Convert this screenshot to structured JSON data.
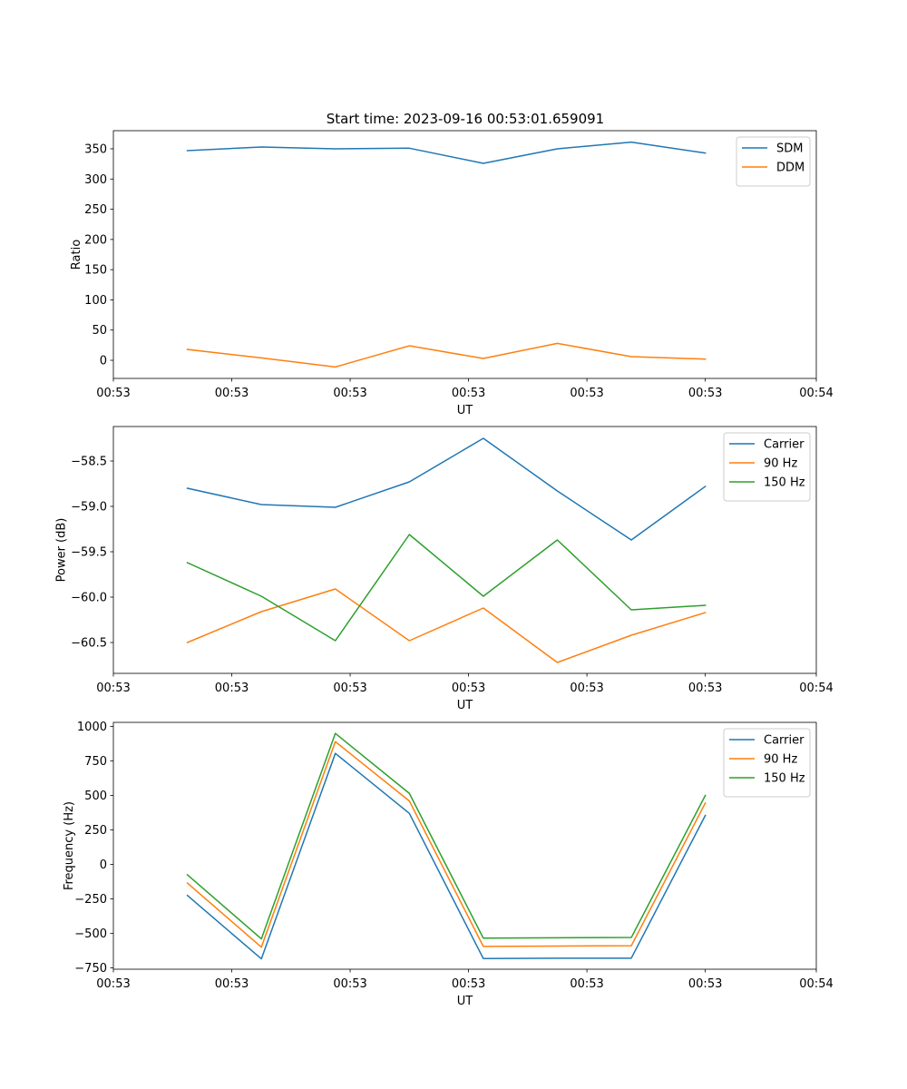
{
  "figure": {
    "title": "Start time: 2023-09-16 00:53:01.659091"
  },
  "colors": {
    "blue": "#1f77b4",
    "orange": "#ff7f0e",
    "green": "#2ca02c"
  },
  "chart_data": [
    {
      "type": "line",
      "title": "Start time: 2023-09-16 00:53:01.659091",
      "xlabel": "UT",
      "ylabel": "Ratio",
      "x": [
        0.5,
        1,
        1.5,
        2,
        2.5,
        3,
        3.5,
        4
      ],
      "xlim": [
        0,
        4.75
      ],
      "xticks": [
        0,
        0.8,
        1.6,
        2.4,
        3.2,
        4.0,
        4.75
      ],
      "xticklabels": [
        "00:53",
        "00:53",
        "00:53",
        "00:53",
        "00:53",
        "00:53",
        "00:54"
      ],
      "ylim": [
        -30,
        380
      ],
      "yticks": [
        0,
        50,
        100,
        150,
        200,
        250,
        300,
        350
      ],
      "legend": "top-right",
      "series": [
        {
          "name": "SDM",
          "color": "#1f77b4",
          "values": [
            347,
            353,
            350,
            351,
            326,
            350,
            361,
            343
          ]
        },
        {
          "name": "DDM",
          "color": "#ff7f0e",
          "values": [
            18,
            4,
            -11,
            24,
            3,
            28,
            6,
            2
          ]
        }
      ]
    },
    {
      "type": "line",
      "title": "",
      "xlabel": "UT",
      "ylabel": "Power (dB)",
      "x": [
        0.5,
        1,
        1.5,
        2,
        2.5,
        3,
        3.5,
        4
      ],
      "xlim": [
        0,
        4.75
      ],
      "xticks": [
        0,
        0.8,
        1.6,
        2.4,
        3.2,
        4.0,
        4.75
      ],
      "xticklabels": [
        "00:53",
        "00:53",
        "00:53",
        "00:53",
        "00:53",
        "00:53",
        "00:54"
      ],
      "ylim": [
        -60.84,
        -58.12
      ],
      "yticks": [
        -60.5,
        -60.0,
        -59.5,
        -59.0,
        -58.5
      ],
      "yticklabels": [
        "−60.5",
        "−60.0",
        "−59.5",
        "−59.0",
        "−58.5"
      ],
      "legend": "top-right",
      "series": [
        {
          "name": "Carrier",
          "color": "#1f77b4",
          "values": [
            -58.8,
            -58.98,
            -59.01,
            -58.73,
            -58.25,
            -58.83,
            -59.37,
            -58.78
          ]
        },
        {
          "name": "90 Hz",
          "color": "#ff7f0e",
          "values": [
            -60.5,
            -60.16,
            -59.91,
            -60.48,
            -60.12,
            -60.72,
            -60.42,
            -60.17
          ]
        },
        {
          "name": "150 Hz",
          "color": "#2ca02c",
          "values": [
            -59.62,
            -59.99,
            -60.48,
            -59.31,
            -59.99,
            -59.37,
            -60.14,
            -60.09
          ]
        }
      ]
    },
    {
      "type": "line",
      "title": "",
      "xlabel": "UT",
      "ylabel": "Frequency (Hz)",
      "x": [
        0.5,
        1,
        1.5,
        2,
        2.5,
        3,
        3.5,
        4
      ],
      "xlim": [
        0,
        4.75
      ],
      "xticks": [
        0,
        0.8,
        1.6,
        2.4,
        3.2,
        4.0,
        4.75
      ],
      "xticklabels": [
        "00:53",
        "00:53",
        "00:53",
        "00:53",
        "00:53",
        "00:53",
        "00:54"
      ],
      "ylim": [
        -760,
        1030
      ],
      "yticks": [
        -750,
        -500,
        -250,
        0,
        250,
        500,
        750,
        1000
      ],
      "yticklabels": [
        "−750",
        "−500",
        "−250",
        "0",
        "250",
        "500",
        "750",
        "1000"
      ],
      "legend": "top-right",
      "series": [
        {
          "name": "Carrier",
          "color": "#1f77b4",
          "values": [
            -225,
            -685,
            805,
            370,
            -683,
            -680,
            -680,
            355
          ]
        },
        {
          "name": "90 Hz",
          "color": "#ff7f0e",
          "values": [
            -135,
            -600,
            890,
            460,
            -595,
            -592,
            -590,
            445
          ]
        },
        {
          "name": "150 Hz",
          "color": "#2ca02c",
          "values": [
            -75,
            -540,
            950,
            515,
            -535,
            -532,
            -530,
            500
          ]
        }
      ]
    }
  ]
}
